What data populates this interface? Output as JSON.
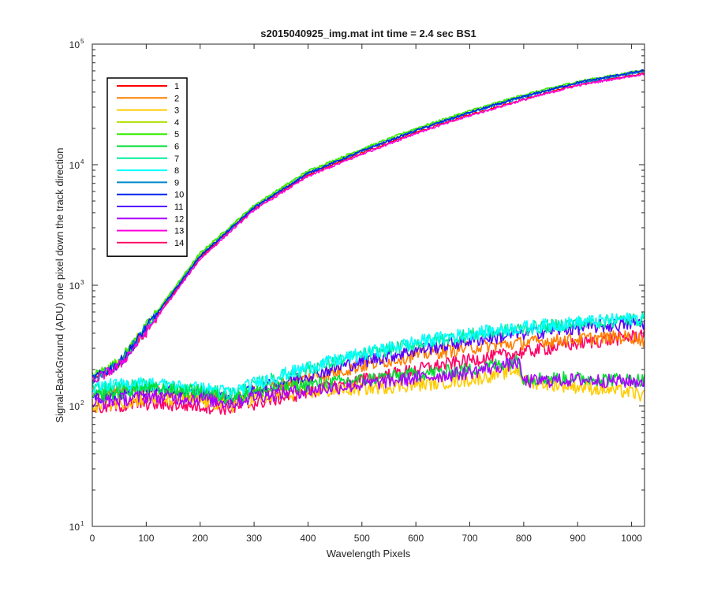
{
  "chart_data": {
    "type": "line",
    "title": "s2015040925_img.mat int time = 2.4 sec   BS1",
    "xlabel": "Wavelength Pixels",
    "ylabel": "Signal-BackGround (ADU) one pixel down the track direction",
    "xlim": [
      0,
      1024
    ],
    "ylim": [
      10,
      100000
    ],
    "yscale": "log",
    "xticks": [
      0,
      100,
      200,
      300,
      400,
      500,
      600,
      700,
      800,
      900,
      1000
    ],
    "yticks": [
      {
        "base": "10",
        "exp": "1"
      },
      {
        "base": "10",
        "exp": "2"
      },
      {
        "base": "10",
        "exp": "3"
      },
      {
        "base": "10",
        "exp": "4"
      },
      {
        "base": "10",
        "exp": "5"
      }
    ],
    "grid": false,
    "legend_position": "top-left",
    "series": [
      {
        "name": "1",
        "color": "#ff0000",
        "x": [
          0,
          50,
          100,
          200,
          300,
          400,
          500,
          600,
          700,
          800,
          900,
          1000,
          1024
        ],
        "y": [
          160,
          220,
          420,
          1700,
          4300,
          8200,
          12500,
          18500,
          26000,
          35000,
          46000,
          55000,
          57000
        ]
      },
      {
        "name": "2",
        "color": "#ff7f00",
        "x": [
          0,
          100,
          200,
          260,
          300,
          400,
          500,
          600,
          700,
          800,
          900,
          1000,
          1024
        ],
        "y": [
          130,
          135,
          120,
          110,
          130,
          170,
          215,
          265,
          305,
          335,
          360,
          375,
          350
        ]
      },
      {
        "name": "3",
        "color": "#ffcc00",
        "x": [
          0,
          100,
          200,
          260,
          300,
          400,
          500,
          600,
          700,
          790,
          800,
          900,
          1000,
          1024
        ],
        "y": [
          100,
          115,
          110,
          100,
          115,
          130,
          140,
          150,
          165,
          200,
          160,
          145,
          130,
          120
        ]
      },
      {
        "name": "4",
        "color": "#b0e000",
        "x": [
          0,
          50,
          100,
          200,
          300,
          400,
          500,
          600,
          700,
          800,
          900,
          1000,
          1024
        ],
        "y": [
          170,
          230,
          450,
          1800,
          4500,
          8700,
          13200,
          19500,
          27500,
          37000,
          48000,
          57500,
          60000
        ]
      },
      {
        "name": "5",
        "color": "#33ee00",
        "x": [
          0,
          50,
          100,
          200,
          300,
          400,
          500,
          600,
          700,
          800,
          900,
          1000,
          1024
        ],
        "y": [
          175,
          235,
          460,
          1850,
          4600,
          8900,
          13500,
          20000,
          28000,
          38000,
          49000,
          58500,
          61000
        ]
      },
      {
        "name": "6",
        "color": "#00dd33",
        "x": [
          0,
          100,
          200,
          260,
          300,
          400,
          500,
          600,
          700,
          790,
          800,
          900,
          1000,
          1024
        ],
        "y": [
          120,
          140,
          130,
          115,
          130,
          150,
          165,
          185,
          200,
          240,
          170,
          170,
          165,
          165
        ]
      },
      {
        "name": "7",
        "color": "#00ee99",
        "x": [
          0,
          100,
          200,
          260,
          300,
          400,
          500,
          600,
          700,
          800,
          900,
          1000,
          1024
        ],
        "y": [
          140,
          150,
          135,
          125,
          150,
          205,
          265,
          330,
          390,
          440,
          485,
          520,
          530
        ]
      },
      {
        "name": "8",
        "color": "#00ffff",
        "x": [
          0,
          100,
          200,
          260,
          300,
          400,
          500,
          600,
          700,
          800,
          900,
          1000,
          1024
        ],
        "y": [
          145,
          155,
          140,
          130,
          155,
          210,
          270,
          340,
          400,
          450,
          495,
          530,
          540
        ]
      },
      {
        "name": "9",
        "color": "#0088cc",
        "x": [
          0,
          50,
          100,
          200,
          300,
          400,
          500,
          600,
          700,
          800,
          900,
          1000,
          1024
        ],
        "y": [
          165,
          225,
          440,
          1750,
          4400,
          8500,
          13000,
          19200,
          27000,
          36500,
          47500,
          57000,
          59500
        ]
      },
      {
        "name": "10",
        "color": "#0022ee",
        "x": [
          0,
          50,
          100,
          200,
          300,
          400,
          500,
          600,
          700,
          800,
          900,
          1000,
          1024
        ],
        "y": [
          165,
          225,
          440,
          1750,
          4400,
          8500,
          13000,
          19200,
          27200,
          36800,
          48000,
          58000,
          60500
        ]
      },
      {
        "name": "11",
        "color": "#5500ff",
        "x": [
          0,
          100,
          200,
          260,
          300,
          400,
          500,
          600,
          700,
          800,
          900,
          1000,
          1024
        ],
        "y": [
          115,
          135,
          125,
          115,
          135,
          180,
          235,
          290,
          350,
          400,
          445,
          480,
          490
        ]
      },
      {
        "name": "12",
        "color": "#aa00ff",
        "x": [
          0,
          100,
          200,
          260,
          300,
          400,
          500,
          600,
          700,
          790,
          800,
          900,
          1000,
          1024
        ],
        "y": [
          105,
          120,
          115,
          105,
          120,
          135,
          150,
          170,
          190,
          230,
          160,
          165,
          160,
          160
        ]
      },
      {
        "name": "13",
        "color": "#ff00dd",
        "x": [
          0,
          50,
          100,
          200,
          300,
          400,
          500,
          600,
          700,
          800,
          900,
          1000,
          1024
        ],
        "y": [
          160,
          215,
          410,
          1650,
          4200,
          8000,
          12200,
          18200,
          25500,
          34500,
          45500,
          54500,
          56500
        ]
      },
      {
        "name": "14",
        "color": "#ff0066",
        "x": [
          0,
          100,
          200,
          260,
          300,
          400,
          500,
          600,
          700,
          800,
          900,
          1000,
          1024
        ],
        "y": [
          95,
          105,
          100,
          95,
          105,
          130,
          165,
          200,
          240,
          280,
          330,
          375,
          400
        ]
      }
    ]
  }
}
